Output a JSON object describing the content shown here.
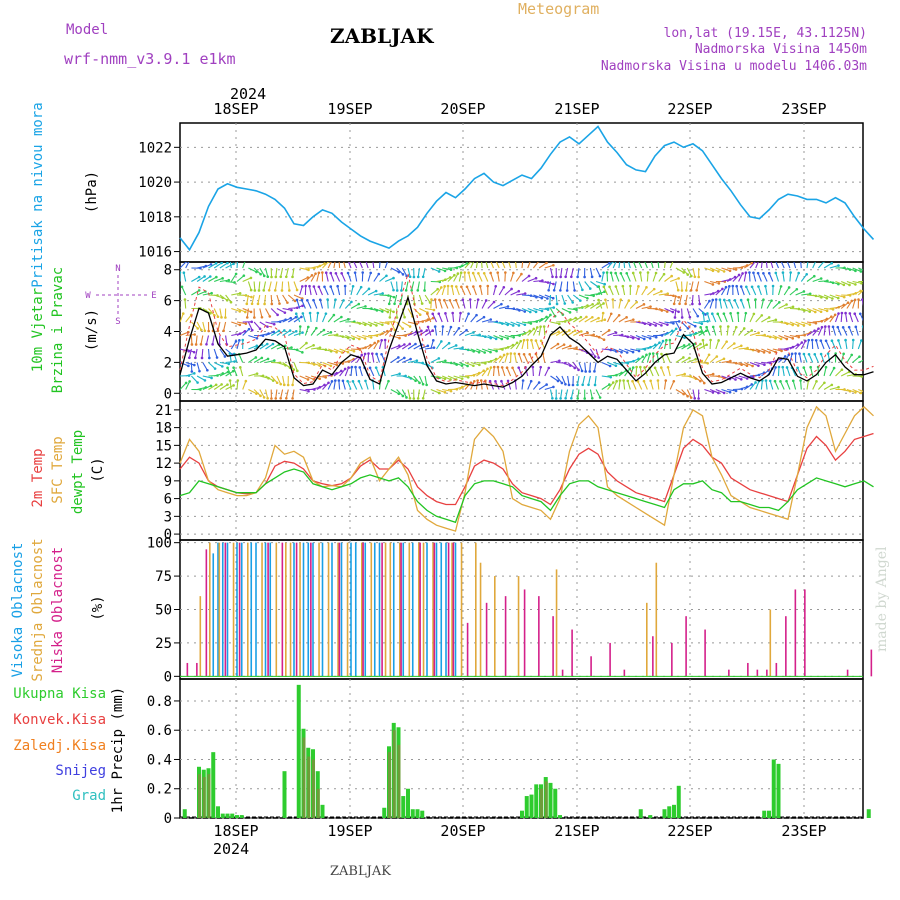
{
  "header": {
    "model_label": "Model",
    "model_name": "wrf-nmm_v3.9.1  e1km",
    "station": "ZABLJAK",
    "meteogram": "Meteogram",
    "lonlat": "lon,lat (19.15E, 43.1125N)",
    "elevation": "Nadmorska Visina 1450m",
    "model_elevation": "Nadmorska Visina u modelu 1406.03m",
    "year": "2024",
    "footer_station": "ZABLJAK",
    "credit": "made by Angel"
  },
  "dates": [
    "18SEP",
    "19SEP",
    "20SEP",
    "21SEP",
    "22SEP",
    "23SEP"
  ],
  "colors": {
    "pressure": "#1aa4e6",
    "temp2m": "#e84040",
    "sfc": "#e0a83c",
    "dew": "#22c422",
    "high_cloud": "#19a0e6",
    "mid_cloud": "#e0a83c",
    "low_cloud": "#d4208a",
    "precip_total": "#2ecc2e",
    "precip_conv": "#e84040",
    "precip_frozen": "#f08020",
    "snow": "#4040e0",
    "hail": "#30c0c0",
    "title_purple": "#a040c0",
    "meteogram_orange": "#e0b060"
  },
  "panels": {
    "pressure": {
      "label": "Pritisak na nivou mora",
      "unit": "(hPa)",
      "ticks": [
        "1016",
        "1018",
        "1020",
        "1022"
      ]
    },
    "wind": {
      "label1": "10m Vjetar",
      "label2": "Brzina i Pravac",
      "unit": "(m/s)",
      "compass_n": "N",
      "compass_s": "S",
      "compass_w": "W",
      "compass_e": "E",
      "ticks": [
        "0",
        "2",
        "4",
        "6",
        "8"
      ]
    },
    "temperature": {
      "label1": "2m Temp",
      "label2": "SFC Temp",
      "label3": "dewpt Temp",
      "unit": "(C)",
      "ticks": [
        "0",
        "3",
        "6",
        "9",
        "12",
        "15",
        "18",
        "21"
      ]
    },
    "cloud": {
      "label1": "Visoka Oblacnost",
      "label2": "Srednja Oblacnost",
      "label3": "Niska Oblacnost",
      "unit": "(%)",
      "ticks": [
        "0",
        "25",
        "50",
        "75",
        "100"
      ]
    },
    "precip": {
      "legend": [
        "Ukupna Kisa",
        "Konvek.Kisa",
        "Zaledj.Kisa",
        "Snijeg",
        "Grad"
      ],
      "unit": "1hr Precip (mm)",
      "ticks": [
        "0",
        "0.2",
        "0.4",
        "0.6",
        "0.8"
      ]
    }
  },
  "chart_data": [
    {
      "type": "line",
      "ylabel": "Pritisak na nivou mora (hPa)",
      "ylim": [
        1015.4,
        1023.4
      ],
      "x_hours": [
        0,
        2,
        4,
        6,
        8,
        10,
        12,
        14,
        16,
        18,
        20,
        22,
        24,
        26,
        28,
        30,
        32,
        34,
        36,
        38,
        40,
        42,
        44,
        46,
        48,
        50,
        52,
        54,
        56,
        58,
        60,
        62,
        64,
        66,
        68,
        70,
        72,
        74,
        76,
        78,
        80,
        82,
        84,
        86,
        88,
        90,
        92,
        94,
        96,
        98,
        100,
        102,
        104,
        106,
        108,
        110,
        112,
        114,
        116,
        118,
        120,
        122,
        124,
        126,
        128,
        130,
        132,
        134,
        136,
        138,
        140,
        142,
        144,
        146
      ],
      "series": [
        {
          "values": [
            1016.8,
            1016.1,
            1017.1,
            1018.6,
            1019.6,
            1019.9,
            1019.7,
            1019.6,
            1019.5,
            1019.3,
            1019.0,
            1018.5,
            1017.6,
            1017.5,
            1018.0,
            1018.4,
            1018.2,
            1017.7,
            1017.3,
            1016.9,
            1016.6,
            1016.4,
            1016.2,
            1016.6,
            1016.9,
            1017.4,
            1018.2,
            1018.9,
            1019.4,
            1019.1,
            1019.6,
            1020.2,
            1020.5,
            1020.0,
            1019.8,
            1020.1,
            1020.4,
            1020.2,
            1020.8,
            1021.6,
            1022.3,
            1022.6,
            1022.2,
            1022.7,
            1023.2,
            1022.3,
            1021.7,
            1021.0,
            1020.7,
            1020.6,
            1021.5,
            1022.1,
            1022.3,
            1022.0,
            1022.2,
            1021.8,
            1021.0,
            1020.2,
            1019.5,
            1018.7,
            1018.0,
            1017.9,
            1018.4,
            1019.0,
            1019.3,
            1019.2,
            1019.0,
            1019.0,
            1018.8,
            1019.1,
            1018.8,
            1018.0,
            1017.3,
            1016.7
          ]
        }
      ]
    },
    {
      "type": "line",
      "ylabel": "10m Vjetar Brzina i Pravac (m/s)",
      "ylim": [
        -0.5,
        8.5
      ],
      "x_hours": [
        0,
        2,
        4,
        6,
        8,
        10,
        12,
        14,
        16,
        18,
        20,
        22,
        24,
        26,
        28,
        30,
        32,
        34,
        36,
        38,
        40,
        42,
        44,
        46,
        48,
        50,
        52,
        54,
        56,
        58,
        60,
        62,
        64,
        66,
        68,
        70,
        72,
        74,
        76,
        78,
        80,
        82,
        84,
        86,
        88,
        90,
        92,
        94,
        96,
        98,
        100,
        102,
        104,
        106,
        108,
        110,
        112,
        114,
        116,
        118,
        120,
        122,
        124,
        126,
        128,
        130,
        132,
        134,
        136,
        138,
        140,
        142,
        144,
        146
      ],
      "series": [
        {
          "values": [
            1.2,
            3.5,
            5.5,
            5.2,
            3.2,
            2.4,
            2.5,
            2.6,
            2.8,
            3.5,
            3.4,
            3.0,
            1.0,
            0.5,
            0.6,
            1.5,
            1.2,
            2.0,
            2.5,
            2.3,
            0.9,
            0.6,
            2.8,
            4.5,
            6.2,
            3.9,
            1.8,
            0.8,
            0.6,
            0.7,
            0.6,
            0.5,
            0.6,
            0.5,
            0.4,
            0.7,
            1.1,
            1.8,
            2.4,
            3.8,
            4.3,
            3.6,
            3.2,
            2.6,
            2.0,
            2.4,
            2.2,
            1.5,
            0.8,
            1.3,
            2.0,
            2.5,
            2.6,
            3.8,
            3.2,
            1.3,
            0.6,
            0.7,
            1.0,
            1.3,
            1.0,
            0.8,
            1.2,
            2.3,
            2.2,
            1.1,
            0.8,
            1.2,
            2.0,
            2.5,
            1.7,
            1.2,
            1.2,
            1.4
          ]
        }
      ]
    },
    {
      "type": "line",
      "ylabel": "(C)",
      "ylim": [
        -1.0,
        22.5
      ],
      "x_hours": [
        0,
        2,
        4,
        6,
        8,
        10,
        12,
        14,
        16,
        18,
        20,
        22,
        24,
        26,
        28,
        30,
        32,
        34,
        36,
        38,
        40,
        42,
        44,
        46,
        48,
        50,
        52,
        54,
        56,
        58,
        60,
        62,
        64,
        66,
        68,
        70,
        72,
        74,
        76,
        78,
        80,
        82,
        84,
        86,
        88,
        90,
        92,
        94,
        96,
        98,
        100,
        102,
        104,
        106,
        108,
        110,
        112,
        114,
        116,
        118,
        120,
        122,
        124,
        126,
        128,
        130,
        132,
        134,
        136,
        138,
        140,
        142,
        144,
        146
      ],
      "series": [
        {
          "name": "2m Temp",
          "values": [
            11.0,
            13.0,
            12.0,
            9.0,
            8.0,
            7.5,
            7.0,
            6.8,
            7.0,
            8.5,
            11.5,
            12.3,
            12.0,
            11.0,
            9.0,
            8.5,
            8.2,
            8.5,
            9.5,
            11.5,
            12.5,
            11.0,
            11.0,
            12.5,
            11.0,
            8.0,
            6.5,
            5.5,
            5.0,
            5.0,
            8.0,
            11.5,
            12.5,
            12.0,
            11.0,
            8.5,
            7.0,
            6.5,
            6.0,
            5.0,
            7.5,
            11.0,
            13.5,
            14.5,
            13.5,
            10.5,
            9.0,
            8.0,
            7.0,
            6.5,
            6.0,
            5.5,
            10.0,
            14.5,
            16.0,
            15.0,
            13.0,
            12.0,
            9.5,
            8.5,
            7.5,
            7.0,
            6.5,
            6.0,
            5.5,
            10.0,
            14.5,
            16.5,
            15.0,
            12.5,
            14.0,
            16.0,
            16.5,
            17.0
          ]
        },
        {
          "name": "SFC Temp",
          "values": [
            12.0,
            16.0,
            14.0,
            9.0,
            7.5,
            7.0,
            6.5,
            6.5,
            7.0,
            9.5,
            15.0,
            13.5,
            14.0,
            13.0,
            9.0,
            8.0,
            8.2,
            8.0,
            9.5,
            12.0,
            13.0,
            9.0,
            11.0,
            13.0,
            10.0,
            4.0,
            2.5,
            1.5,
            1.0,
            0.5,
            7.0,
            16.0,
            18.0,
            16.5,
            14.0,
            6.0,
            5.0,
            4.5,
            4.0,
            2.5,
            6.0,
            14.0,
            18.5,
            20.0,
            18.0,
            8.0,
            6.5,
            5.5,
            4.5,
            3.5,
            2.5,
            1.5,
            10.0,
            18.0,
            21.0,
            20.0,
            13.0,
            10.0,
            6.5,
            5.5,
            4.5,
            4.0,
            3.5,
            3.0,
            2.5,
            10.0,
            18.0,
            21.5,
            20.0,
            14.0,
            17.0,
            20.0,
            21.5,
            20.0
          ]
        },
        {
          "name": "dewpt Temp",
          "values": [
            6.5,
            7.0,
            9.0,
            8.5,
            8.0,
            7.5,
            7.0,
            7.0,
            7.0,
            8.5,
            9.5,
            10.5,
            11.0,
            10.5,
            8.5,
            8.0,
            7.5,
            8.0,
            8.5,
            9.5,
            10.0,
            9.5,
            9.0,
            9.5,
            8.0,
            5.5,
            4.0,
            3.0,
            2.5,
            2.0,
            6.5,
            8.5,
            9.0,
            9.0,
            8.5,
            8.0,
            6.5,
            6.0,
            5.5,
            4.0,
            6.5,
            8.5,
            9.0,
            9.0,
            8.0,
            7.5,
            7.0,
            6.5,
            6.0,
            5.5,
            5.0,
            4.5,
            7.5,
            8.5,
            8.5,
            9.0,
            7.5,
            7.0,
            5.5,
            5.5,
            5.0,
            4.5,
            4.5,
            4.0,
            5.5,
            7.5,
            8.5,
            9.5,
            9.0,
            8.5,
            8.0,
            8.5,
            9.0,
            8.0
          ]
        }
      ]
    },
    {
      "type": "bar",
      "ylabel": "(%)",
      "ylim": [
        -2,
        102
      ],
      "series": [
        {
          "name": "Visoka Oblacnost",
          "x_hours": [
            7,
            8,
            9,
            10,
            12,
            13,
            15,
            16,
            18,
            19,
            24,
            26,
            27,
            28,
            30,
            32,
            34,
            36,
            37,
            39,
            41,
            42,
            45,
            47,
            49,
            52,
            54,
            55,
            56,
            58
          ],
          "values": [
            92,
            100,
            100,
            100,
            100,
            100,
            100,
            100,
            100,
            100,
            100,
            100,
            100,
            100,
            100,
            100,
            100,
            100,
            100,
            100,
            100,
            100,
            100,
            100,
            100,
            100,
            100,
            100,
            100,
            100
          ]
        },
        {
          "name": "Srednja Oblacnost",
          "x_hours": [
            4,
            6,
            8,
            11,
            14,
            17,
            20,
            22,
            23,
            25,
            29,
            31,
            33,
            35,
            38,
            40,
            43,
            44,
            46,
            48,
            50,
            51,
            53,
            57,
            59,
            62,
            63,
            66,
            71,
            79,
            98,
            100,
            124
          ],
          "values": [
            60,
            100,
            100,
            100,
            100,
            100,
            100,
            100,
            100,
            100,
            100,
            100,
            100,
            100,
            100,
            100,
            100,
            100,
            100,
            100,
            100,
            100,
            100,
            100,
            100,
            100,
            85,
            75,
            75,
            80,
            55,
            85,
            50
          ]
        },
        {
          "name": "Niska Oblacnost",
          "x_hours": [
            1,
            3,
            5,
            9,
            12,
            18,
            21,
            24,
            27,
            33,
            38,
            42,
            46,
            50,
            53,
            56,
            57,
            60,
            64,
            68,
            72,
            75,
            78,
            80,
            82,
            86,
            90,
            93,
            99,
            103,
            106,
            110,
            115,
            119,
            121,
            123,
            125,
            127,
            129,
            131,
            140,
            145
          ],
          "values": [
            10,
            10,
            95,
            100,
            100,
            100,
            100,
            100,
            100,
            100,
            100,
            100,
            100,
            100,
            100,
            100,
            100,
            40,
            55,
            60,
            65,
            60,
            45,
            5,
            35,
            15,
            25,
            5,
            30,
            25,
            45,
            35,
            5,
            10,
            5,
            5,
            10,
            45,
            65,
            65,
            5,
            20
          ]
        }
      ]
    },
    {
      "type": "bar",
      "ylabel": "1hr Precip (mm)",
      "ylim": [
        0,
        0.95
      ],
      "series": [
        {
          "name": "Ukupna Kisa",
          "x_hours": [
            1,
            4,
            5,
            6,
            7,
            8,
            9,
            10,
            11,
            12,
            13,
            22,
            25,
            26,
            27,
            28,
            29,
            30,
            43,
            44,
            45,
            46,
            47,
            48,
            49,
            50,
            51,
            72,
            73,
            74,
            75,
            76,
            77,
            78,
            79,
            80,
            97,
            99,
            102,
            103,
            104,
            105,
            123,
            124,
            125,
            126,
            145
          ],
          "values": [
            0.06,
            0.35,
            0.33,
            0.34,
            0.45,
            0.08,
            0.03,
            0.03,
            0.03,
            0.02,
            0.02,
            0.32,
            0.91,
            0.61,
            0.48,
            0.47,
            0.32,
            0.09,
            0.07,
            0.49,
            0.65,
            0.62,
            0.15,
            0.2,
            0.06,
            0.06,
            0.05,
            0.05,
            0.15,
            0.16,
            0.23,
            0.23,
            0.28,
            0.24,
            0.2,
            0.02,
            0.06,
            0.02,
            0.06,
            0.08,
            0.09,
            0.22,
            0.05,
            0.05,
            0.4,
            0.37,
            0.06
          ]
        },
        {
          "name": "Konvek.Kisa",
          "x_hours": [
            4,
            5,
            6,
            26,
            27,
            28,
            29,
            44,
            45,
            46,
            76,
            77
          ],
          "values": [
            0.3,
            0.28,
            0.3,
            0.55,
            0.42,
            0.4,
            0.2,
            0.45,
            0.6,
            0.5,
            0.2,
            0.25
          ]
        }
      ]
    }
  ]
}
